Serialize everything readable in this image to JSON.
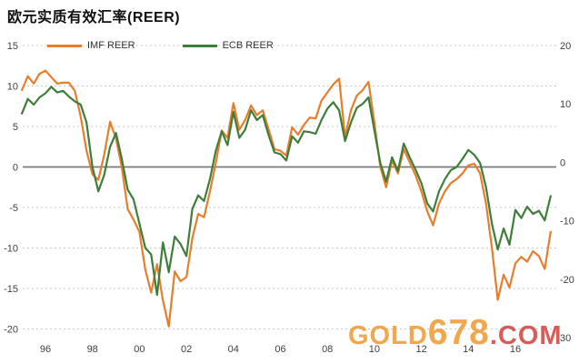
{
  "title": "欧元实质有效汇率(REER)",
  "legend": {
    "items": [
      {
        "label": "IMF REER",
        "color": "#E87D2C"
      },
      {
        "label": "ECB REER",
        "color": "#3E7E38"
      }
    ]
  },
  "watermark": {
    "gold": "GOLD",
    "num": "678",
    "com": ".COM",
    "gold_color": "#F0A140",
    "com_color": "#D4504E"
  },
  "colors": {
    "grid": "#c8c8c8",
    "zero_line": "#7a7a7a",
    "axis_text": "#3f3f3f",
    "background": "#ffffff"
  },
  "chart_data": {
    "type": "line",
    "title": "欧元实质有效汇率(REER)",
    "xlabel": "",
    "ylabel": "",
    "grid": "dotted horizontal",
    "legend_position": "top-left",
    "x_axis": {
      "labels": [
        "96",
        "98",
        "00",
        "02",
        "04",
        "06",
        "08",
        "10",
        "12",
        "14",
        "16"
      ],
      "label_years": [
        1996,
        1998,
        2000,
        2002,
        2004,
        2006,
        2008,
        2010,
        2012,
        2014,
        2016
      ]
    },
    "left_axis": {
      "ticks": [
        15,
        10,
        5,
        0,
        -5,
        -10,
        -15,
        -20
      ],
      "range": [
        -20,
        15
      ]
    },
    "right_axis": {
      "labels": [
        "20",
        "10",
        "0",
        "-10",
        "-20",
        "30"
      ],
      "range": [
        -30,
        20
      ]
    },
    "x_start": 1995.0,
    "x_step": 0.25,
    "x_end": 2017.5,
    "series": [
      {
        "name": "IMF REER",
        "color": "#E87D2C",
        "values": [
          9.5,
          11.2,
          10.3,
          11.5,
          11.9,
          11.1,
          10.3,
          10.4,
          10.4,
          9.4,
          6.2,
          2.0,
          -0.9,
          -1.6,
          1.5,
          5.6,
          3.5,
          0.0,
          -5.2,
          -6.5,
          -8.0,
          -12.7,
          -15.5,
          -12.0,
          -16.5,
          -19.7,
          -12.9,
          -14.1,
          -13.6,
          -8.8,
          -5.8,
          -6.2,
          -3.0,
          0.5,
          4.5,
          3.6,
          7.9,
          4.6,
          5.8,
          7.6,
          6.4,
          7.0,
          4.6,
          2.2,
          2.0,
          1.4,
          4.9,
          4.0,
          5.2,
          6.1,
          6.0,
          8.2,
          9.2,
          10.2,
          10.9,
          3.7,
          7.0,
          8.8,
          9.5,
          10.5,
          5.5,
          0.0,
          -2.5,
          0.8,
          -0.8,
          2.2,
          0.6,
          -1.0,
          -3.0,
          -5.5,
          -7.2,
          -4.5,
          -3.0,
          -2.0,
          -1.5,
          -0.8,
          0.2,
          0.4,
          -0.8,
          -4.5,
          -10.0,
          -16.4,
          -13.3,
          -14.9,
          -11.9,
          -11.1,
          -11.7,
          -10.4,
          -11.0,
          -12.6,
          -8.0
        ]
      },
      {
        "name": "ECB REER",
        "color": "#3E7E38",
        "values": [
          6.6,
          8.4,
          7.7,
          8.6,
          9.1,
          9.9,
          9.2,
          9.4,
          8.7,
          8.1,
          7.7,
          5.5,
          0.0,
          -3.0,
          -1.0,
          2.5,
          4.2,
          1.0,
          -2.8,
          -4.0,
          -7.0,
          -10.0,
          -10.8,
          -15.8,
          -9.3,
          -13.0,
          -8.6,
          -9.5,
          -11.0,
          -5.2,
          -3.5,
          -4.2,
          -1.5,
          2.0,
          4.4,
          2.7,
          6.8,
          3.6,
          4.6,
          7.0,
          5.8,
          6.4,
          3.9,
          1.8,
          1.6,
          0.8,
          3.8,
          3.0,
          4.4,
          4.3,
          4.1,
          5.8,
          7.2,
          8.0,
          7.0,
          3.2,
          5.5,
          7.3,
          7.8,
          8.6,
          4.5,
          0.5,
          -1.8,
          1.2,
          -0.5,
          2.9,
          1.2,
          -0.3,
          -2.0,
          -4.5,
          -5.5,
          -3.0,
          -1.5,
          -0.4,
          0.0,
          1.0,
          2.1,
          1.5,
          0.5,
          -2.5,
          -7.0,
          -10.2,
          -7.6,
          -9.6,
          -5.3,
          -6.3,
          -4.9,
          -5.8,
          -5.4,
          -6.6,
          -3.6
        ]
      }
    ]
  }
}
